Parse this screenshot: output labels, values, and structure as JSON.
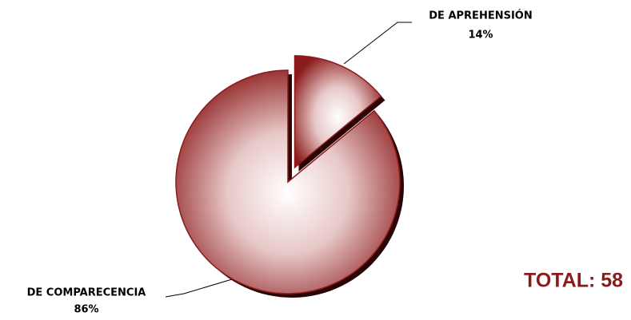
{
  "chart_data": {
    "type": "pie",
    "categories": [
      "DE APREHENSIÓN",
      "DE COMPARECENCIA"
    ],
    "values": [
      14,
      86
    ],
    "value_labels": [
      "14%",
      "86%"
    ],
    "color": "#8b1a1a",
    "annotation": "TOTAL: 58"
  }
}
